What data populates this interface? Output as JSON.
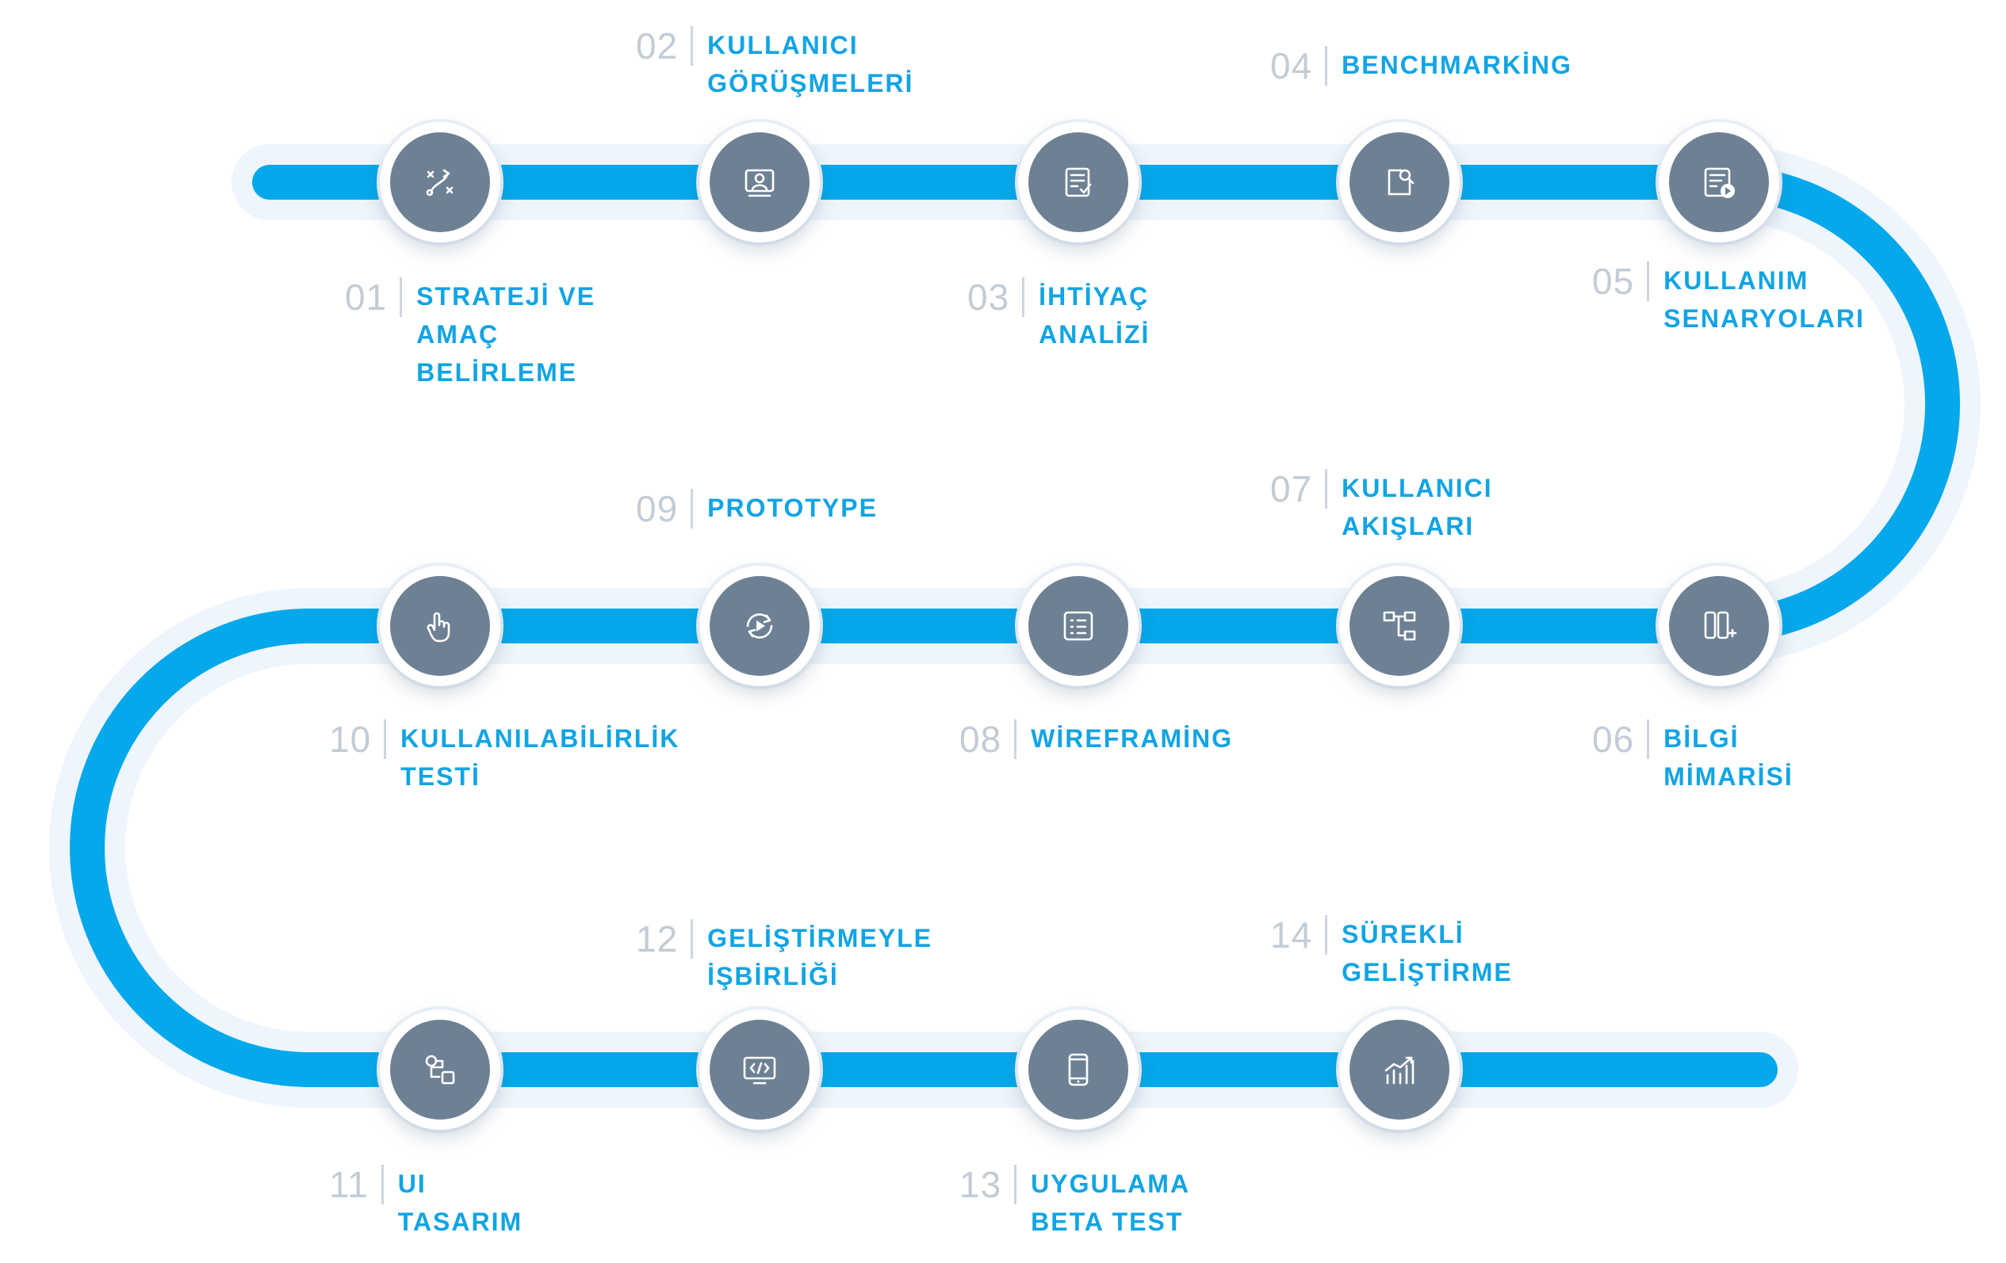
{
  "colors": {
    "track": "#05a8ea",
    "track_glow": "#eef5fc",
    "node": "#6e8194",
    "number": "#c2ccd6",
    "label": "#11a4e4"
  },
  "steps": [
    {
      "num": "01",
      "lines": [
        "STRATEJİ VE",
        "AMAÇ",
        "BELİRLEME"
      ],
      "icon": "strategy-icon"
    },
    {
      "num": "02",
      "lines": [
        "KULLANICI",
        "GÖRÜŞMELERİ"
      ],
      "icon": "user-interview-icon"
    },
    {
      "num": "03",
      "lines": [
        "İHTİYAÇ",
        "ANALİZİ"
      ],
      "icon": "checklist-icon"
    },
    {
      "num": "04",
      "lines": [
        "BENCHMARKİNG"
      ],
      "icon": "search-icon"
    },
    {
      "num": "05",
      "lines": [
        "KULLANIM",
        "SENARYOLARI"
      ],
      "icon": "scenario-play-icon"
    },
    {
      "num": "06",
      "lines": [
        "BİLGİ",
        "MİMARİSİ"
      ],
      "icon": "columns-add-icon"
    },
    {
      "num": "07",
      "lines": [
        "KULLANICI",
        "AKIŞLARI"
      ],
      "icon": "flow-icon"
    },
    {
      "num": "08",
      "lines": [
        "WİREFRAMİNG"
      ],
      "icon": "wireframe-icon"
    },
    {
      "num": "09",
      "lines": [
        "PROTOTYPE"
      ],
      "icon": "prototype-icon"
    },
    {
      "num": "10",
      "lines": [
        "KULLANILABİLİRLİK",
        "TESTİ"
      ],
      "icon": "touch-icon"
    },
    {
      "num": "11",
      "lines": [
        "UI",
        "TASARIM"
      ],
      "icon": "ui-design-icon"
    },
    {
      "num": "12",
      "lines": [
        "GELİŞTİRMEYLE",
        "İŞBİRLİĞİ"
      ],
      "icon": "code-screen-icon"
    },
    {
      "num": "13",
      "lines": [
        "UYGULAMA",
        "BETA TEST"
      ],
      "icon": "mobile-icon"
    },
    {
      "num": "14",
      "lines": [
        "SÜREKLİ",
        "GELİŞTİRME"
      ],
      "icon": "growth-chart-icon"
    }
  ]
}
